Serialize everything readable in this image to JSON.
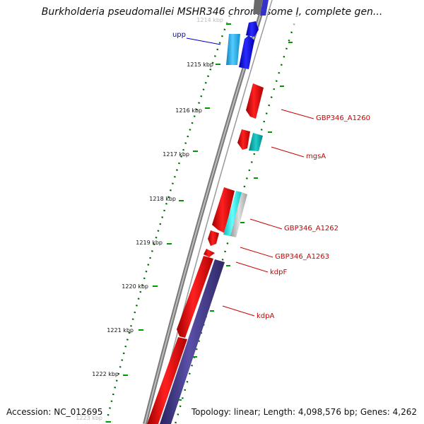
{
  "title": "Burkholderia pseudomallei MSHR346 chromosome I, complete gen...",
  "ruler_ticks": [
    {
      "label": "1214 kbp",
      "faded": true
    },
    {
      "label": "1215 kbp",
      "faded": false
    },
    {
      "label": "1216 kbp",
      "faded": false
    },
    {
      "label": "1217 kbp",
      "faded": false
    },
    {
      "label": "1218 kbp",
      "faded": false
    },
    {
      "label": "1219 kbp",
      "faded": false
    },
    {
      "label": "1220 kbp",
      "faded": false
    },
    {
      "label": "1221 kbp",
      "faded": false
    },
    {
      "label": "1222 kbp",
      "faded": false
    },
    {
      "label": "1223 kbp",
      "faded": true
    }
  ],
  "gene_labels": [
    {
      "text": "upp",
      "color": "#0000cc"
    },
    {
      "text": "GBP346_A1260",
      "color": "#cc0000"
    },
    {
      "text": "mgsA",
      "color": "#cc0000"
    },
    {
      "text": "GBP346_A1262",
      "color": "#cc0000"
    },
    {
      "text": "GBP346_A1263",
      "color": "#cc0000"
    },
    {
      "text": "kdpF",
      "color": "#cc0000"
    },
    {
      "text": "kdpA",
      "color": "#cc0000"
    }
  ],
  "colors": {
    "forward_cds": "#0000ee",
    "forward_cds_light": "#33bbee",
    "reverse_cds": "#ee0000",
    "reverse_cds_teal": "#00aaaa",
    "reverse_cds_cyan": "#22dddd",
    "reverse_cds_gray": "#bbbbbb",
    "long_cds_purple": "#403880",
    "backbone": "#888888",
    "ruler_dots": "#006600"
  },
  "footer": {
    "accession": "Accession: NC_012695",
    "info": "Topology: linear; Length: 4,098,576 bp; Genes: 4,262"
  }
}
